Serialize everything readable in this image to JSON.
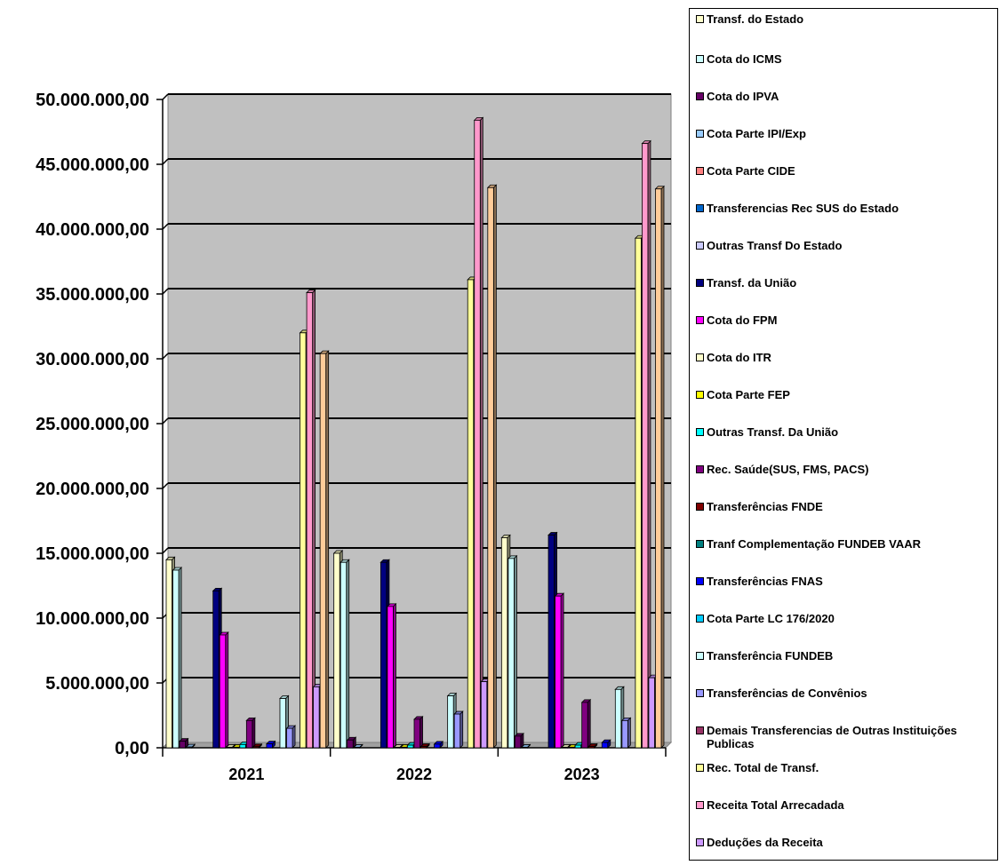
{
  "chart_data": {
    "type": "bar",
    "categories": [
      "2021",
      "2022",
      "2023"
    ],
    "y_tick_labels": [
      "0,00",
      "5.000.000,00",
      "10.000.000,00",
      "15.000.000,00",
      "20.000.000,00",
      "25.000.000,00",
      "30.000.000,00",
      "35.000.000,00",
      "40.000.000,00",
      "45.000.000,00",
      "50.000.000,00"
    ],
    "ylim": [
      0,
      50000000
    ],
    "grid": true,
    "plot_background": "#c0c0c0",
    "legend_position": "right",
    "series": [
      {
        "name": "Transf. do Estado",
        "color": "#ffffcc",
        "values": [
          14500000,
          15000000,
          16200000
        ]
      },
      {
        "name": "Cota do ICMS",
        "color": "#ccffff",
        "values": [
          13700000,
          14300000,
          14600000
        ]
      },
      {
        "name": "Cota do IPVA",
        "color": "#660066",
        "values": [
          500000,
          600000,
          900000
        ]
      },
      {
        "name": "Cota Parte IPI/Exp",
        "color": "#99ccff",
        "values": [
          60000,
          40000,
          40000
        ]
      },
      {
        "name": "Cota Parte CIDE",
        "color": "#ff8080",
        "values": [
          10000,
          10000,
          10000
        ]
      },
      {
        "name": "Transferencias Rec SUS do Estado",
        "color": "#0066cc",
        "values": [
          10000,
          10000,
          10000
        ]
      },
      {
        "name": "Outras Transf Do Estado",
        "color": "#ccccff",
        "values": [
          10000,
          10000,
          10000
        ]
      },
      {
        "name": "Transf. da União",
        "color": "#000080",
        "values": [
          12100000,
          14300000,
          16400000
        ]
      },
      {
        "name": "Cota do FPM",
        "color": "#ff00ff",
        "values": [
          8700000,
          10900000,
          11700000
        ]
      },
      {
        "name": "Cota do ITR",
        "color": "#ffffcc",
        "values": [
          40000,
          40000,
          40000
        ]
      },
      {
        "name": "Cota Parte FEP",
        "color": "#ffff00",
        "values": [
          40000,
          40000,
          40000
        ]
      },
      {
        "name": "Outras Transf. Da União",
        "color": "#00ffff",
        "values": [
          250000,
          200000,
          200000
        ]
      },
      {
        "name": "Rec. Saúde(SUS, FMS, PACS)",
        "color": "#800080",
        "values": [
          2100000,
          2200000,
          3500000
        ]
      },
      {
        "name": "Transferências FNDE",
        "color": "#800000",
        "values": [
          80000,
          100000,
          100000
        ]
      },
      {
        "name": "Tranf Complementação FUNDEB VAAR",
        "color": "#008080",
        "values": [
          0,
          0,
          0
        ]
      },
      {
        "name": "Transferências FNAS",
        "color": "#0000ff",
        "values": [
          300000,
          280000,
          400000
        ]
      },
      {
        "name": "Cota Parte LC 176/2020",
        "color": "#00ccff",
        "values": [
          20000,
          20000,
          20000
        ]
      },
      {
        "name": "Transferência  FUNDEB",
        "color": "#ccffff",
        "values": [
          3800000,
          4000000,
          4500000
        ]
      },
      {
        "name": "Transferências de Convênios",
        "color": "#9999ff",
        "values": [
          1500000,
          2600000,
          2100000
        ]
      },
      {
        "name": "Demais Transferencias de Outras Instituições Publicas",
        "color": "#993366",
        "values": [
          10000,
          10000,
          10000
        ]
      },
      {
        "name": "Rec. Total de Transf.",
        "color": "#ffff99",
        "values": [
          32000000,
          36100000,
          39300000
        ]
      },
      {
        "name": "Receita Total Arrecadada",
        "color": "#ff99cc",
        "values": [
          35100000,
          48400000,
          46600000
        ]
      },
      {
        "name": "Deduções da Receita",
        "color": "#cc99ff",
        "values": [
          4700000,
          5100000,
          5400000
        ]
      },
      {
        "name": "",
        "color": "#ffcc99",
        "values": [
          30400000,
          43200000,
          43100000
        ]
      }
    ]
  }
}
